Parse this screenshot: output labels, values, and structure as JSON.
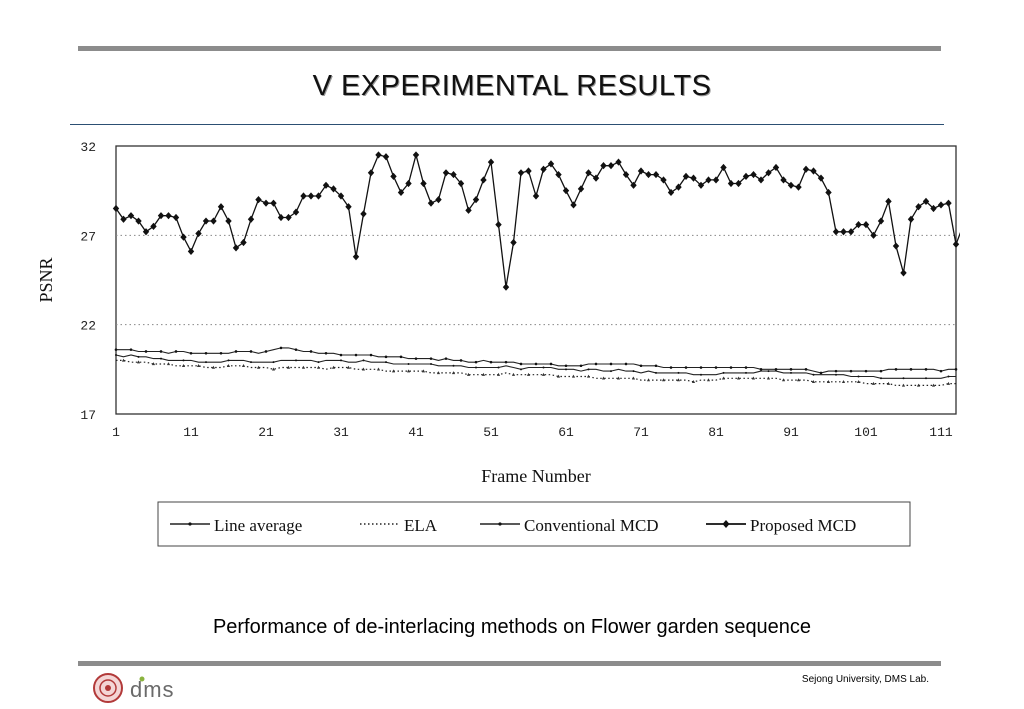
{
  "slide": {
    "title": "V  EXPERIMENTAL RESULTS",
    "caption": "Performance of de-interlacing methods on Flower garden sequence",
    "footer": "Sejong University, DMS Lab.",
    "logo_text": "dms",
    "rule_color": "#8c8c8c",
    "accent_line_color": "#2c4f73"
  },
  "chart_data": {
    "type": "line",
    "title": "",
    "xlabel": "Frame Number",
    "ylabel": "PSNR",
    "xlim": [
      1,
      113
    ],
    "ylim": [
      17,
      32
    ],
    "xticks": [
      1,
      11,
      21,
      31,
      41,
      51,
      61,
      71,
      81,
      91,
      101,
      111
    ],
    "yticks": [
      17,
      22,
      27,
      32
    ],
    "grid": "dotted horizontal at 22 and 27",
    "legend_position": "bottom",
    "x_start": 1,
    "x_step": 1,
    "series": [
      {
        "name": "Line average",
        "style": "solid-dot",
        "values": [
          20.3,
          20.2,
          20.3,
          20.2,
          20.2,
          20.1,
          20.1,
          20.0,
          20.0,
          20.0,
          20.0,
          19.9,
          19.9,
          19.9,
          19.9,
          20.0,
          20.0,
          20.0,
          19.9,
          19.9,
          19.9,
          19.9,
          20.0,
          20.0,
          20.0,
          20.0,
          20.0,
          19.9,
          20.0,
          20.0,
          20.0,
          19.9,
          19.9,
          20.0,
          19.9,
          19.9,
          19.9,
          19.8,
          19.8,
          19.8,
          19.8,
          19.8,
          19.8,
          19.7,
          19.7,
          19.7,
          19.7,
          19.6,
          19.6,
          19.6,
          19.6,
          19.6,
          19.7,
          19.6,
          19.5,
          19.6,
          19.6,
          19.6,
          19.6,
          19.5,
          19.5,
          19.5,
          19.4,
          19.5,
          19.5,
          19.4,
          19.4,
          19.5,
          19.4,
          19.4,
          19.3,
          19.4,
          19.3,
          19.3,
          19.3,
          19.3,
          19.3,
          19.2,
          19.2,
          19.2,
          19.2,
          19.3,
          19.3,
          19.3,
          19.3,
          19.3,
          19.4,
          19.4,
          19.4,
          19.3,
          19.3,
          19.3,
          19.3,
          19.2,
          19.2,
          19.2,
          19.2,
          19.2,
          19.1,
          19.1,
          19.1,
          19.1,
          19.0,
          19.0,
          19.0,
          19.0,
          19.0,
          19.0,
          19.0,
          19.0,
          19.0,
          19.1,
          19.1
        ]
      },
      {
        "name": "ELA",
        "style": "dotted",
        "values": [
          20.0,
          20.0,
          19.9,
          19.9,
          19.9,
          19.8,
          19.8,
          19.8,
          19.7,
          19.7,
          19.7,
          19.7,
          19.6,
          19.6,
          19.6,
          19.7,
          19.7,
          19.7,
          19.6,
          19.6,
          19.6,
          19.5,
          19.6,
          19.6,
          19.6,
          19.6,
          19.6,
          19.6,
          19.5,
          19.6,
          19.6,
          19.6,
          19.5,
          19.5,
          19.5,
          19.5,
          19.4,
          19.4,
          19.4,
          19.4,
          19.4,
          19.4,
          19.3,
          19.3,
          19.3,
          19.3,
          19.3,
          19.2,
          19.2,
          19.2,
          19.2,
          19.2,
          19.3,
          19.2,
          19.2,
          19.2,
          19.2,
          19.2,
          19.2,
          19.1,
          19.1,
          19.1,
          19.1,
          19.1,
          19.0,
          19.0,
          19.0,
          19.0,
          19.0,
          19.0,
          18.9,
          18.9,
          18.9,
          18.9,
          18.9,
          18.9,
          18.9,
          18.8,
          18.9,
          18.9,
          18.9,
          19.0,
          19.0,
          19.0,
          19.0,
          19.0,
          19.0,
          19.0,
          19.0,
          18.9,
          18.9,
          18.9,
          18.9,
          18.8,
          18.8,
          18.8,
          18.8,
          18.8,
          18.8,
          18.8,
          18.7,
          18.7,
          18.7,
          18.7,
          18.6,
          18.6,
          18.6,
          18.6,
          18.6,
          18.6,
          18.6,
          18.7,
          18.7
        ]
      },
      {
        "name": "Conventional MCD",
        "style": "solid-small-marker",
        "values": [
          20.6,
          20.6,
          20.6,
          20.5,
          20.5,
          20.5,
          20.5,
          20.4,
          20.5,
          20.5,
          20.4,
          20.4,
          20.4,
          20.4,
          20.4,
          20.4,
          20.5,
          20.5,
          20.5,
          20.4,
          20.5,
          20.6,
          20.7,
          20.7,
          20.6,
          20.5,
          20.5,
          20.4,
          20.4,
          20.4,
          20.3,
          20.3,
          20.3,
          20.3,
          20.3,
          20.2,
          20.2,
          20.2,
          20.2,
          20.1,
          20.1,
          20.1,
          20.1,
          20.0,
          20.1,
          20.0,
          20.0,
          19.9,
          19.9,
          20.0,
          19.9,
          19.9,
          19.9,
          19.9,
          19.8,
          19.8,
          19.8,
          19.8,
          19.8,
          19.7,
          19.7,
          19.7,
          19.7,
          19.8,
          19.8,
          19.8,
          19.8,
          19.8,
          19.8,
          19.8,
          19.7,
          19.7,
          19.7,
          19.6,
          19.6,
          19.6,
          19.6,
          19.6,
          19.6,
          19.6,
          19.6,
          19.6,
          19.6,
          19.6,
          19.6,
          19.6,
          19.5,
          19.5,
          19.5,
          19.5,
          19.5,
          19.5,
          19.5,
          19.4,
          19.3,
          19.4,
          19.4,
          19.4,
          19.4,
          19.4,
          19.4,
          19.4,
          19.4,
          19.5,
          19.5,
          19.5,
          19.5,
          19.5,
          19.5,
          19.5,
          19.4,
          19.5,
          19.5
        ]
      },
      {
        "name": "Proposed MCD",
        "style": "solid-diamond",
        "values": [
          28.5,
          27.9,
          28.1,
          27.8,
          27.2,
          27.5,
          28.1,
          28.1,
          28.0,
          26.9,
          26.1,
          27.1,
          27.8,
          27.8,
          28.6,
          27.8,
          26.3,
          26.6,
          27.9,
          29.0,
          28.8,
          28.8,
          28.0,
          28.0,
          28.3,
          29.2,
          29.2,
          29.2,
          29.8,
          29.6,
          29.2,
          28.6,
          25.8,
          28.2,
          30.5,
          31.5,
          31.4,
          30.3,
          29.4,
          29.9,
          31.5,
          29.9,
          28.8,
          29.0,
          30.5,
          30.4,
          29.9,
          28.4,
          29.0,
          30.1,
          31.1,
          27.6,
          24.1,
          26.6,
          30.5,
          30.6,
          29.2,
          30.7,
          31.0,
          30.4,
          29.5,
          28.7,
          29.6,
          30.5,
          30.2,
          30.9,
          30.9,
          31.1,
          30.4,
          29.8,
          30.6,
          30.4,
          30.4,
          30.1,
          29.4,
          29.7,
          30.3,
          30.2,
          29.8,
          30.1,
          30.1,
          30.8,
          29.9,
          29.9,
          30.3,
          30.4,
          30.1,
          30.5,
          30.8,
          30.1,
          29.8,
          29.7,
          30.7,
          30.6,
          30.2,
          29.4,
          27.2,
          27.2,
          27.2,
          27.6,
          27.6,
          27.0,
          27.8,
          28.9,
          26.4,
          24.9,
          27.9,
          28.6,
          28.9,
          28.5,
          28.7,
          28.8,
          26.5,
          27.6
        ]
      }
    ]
  }
}
